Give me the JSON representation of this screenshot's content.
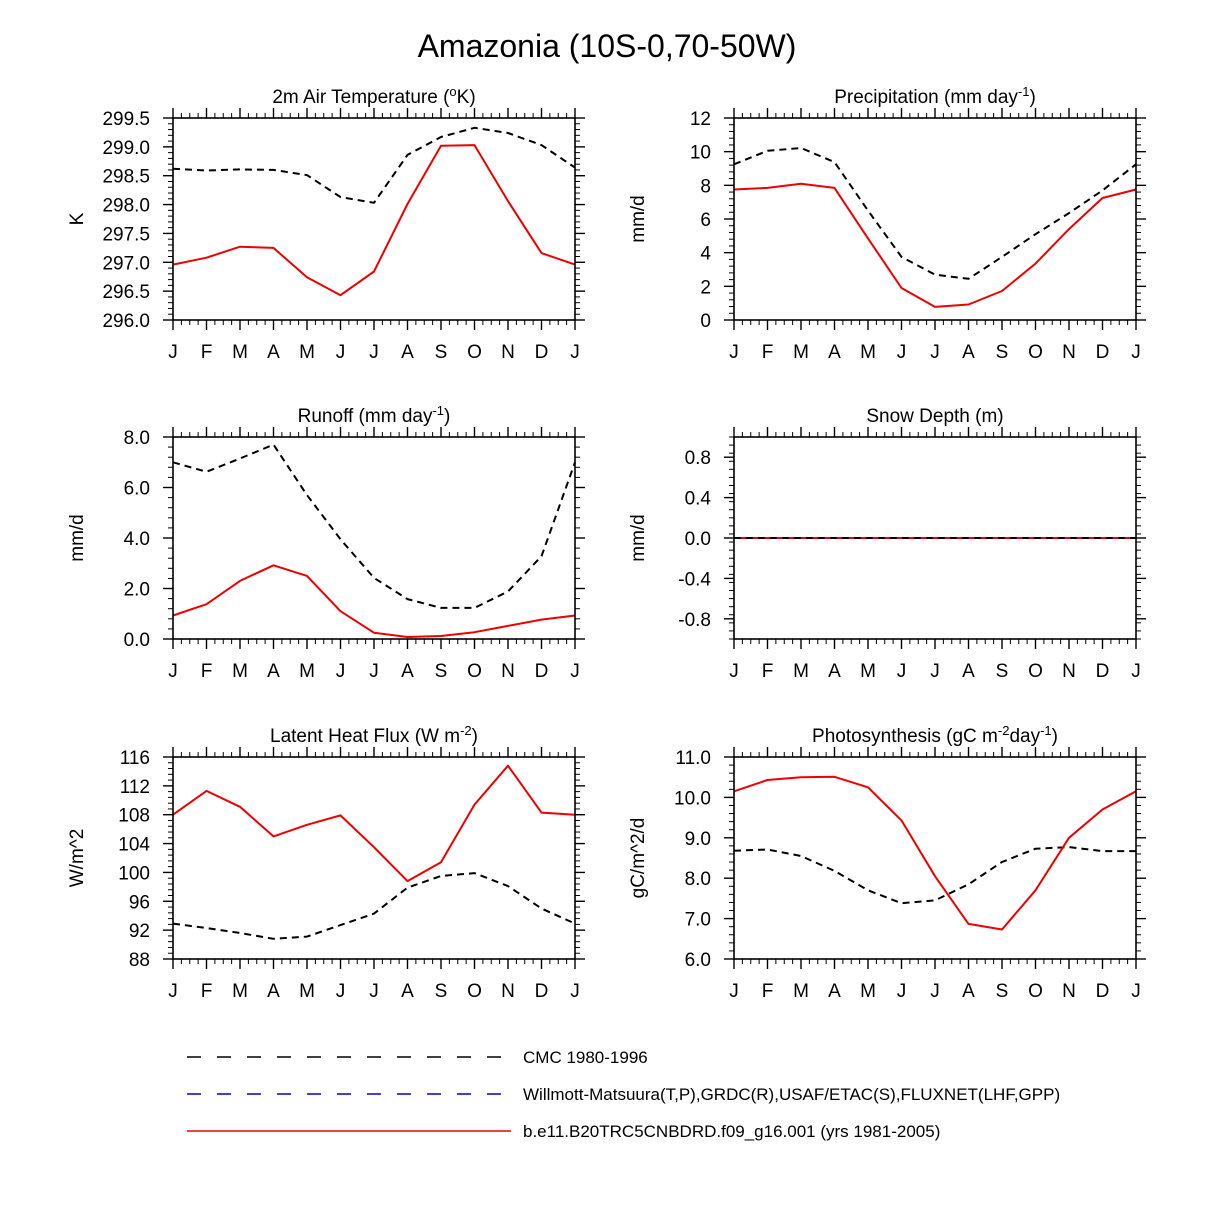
{
  "figure": {
    "title": "Amazonia (10S-0,70-50W)"
  },
  "colors": {
    "obs1": "#000000",
    "obs2": "#0000cc",
    "model": "#ee0000",
    "axis": "#000000"
  },
  "legend": {
    "entries": [
      {
        "label": "CMC 1980-1996",
        "style": "dashed",
        "color": "#000000"
      },
      {
        "label": "Willmott-Matsuura(T,P),GRDC(R),USAF/ETAC(S),FLUXNET(LHF,GPP)",
        "style": "dashed",
        "color": "#0000cc"
      },
      {
        "label": "b.e11.B20TRC5CNBDRD.f09_g16.001 (yrs 1981-2005)",
        "style": "solid",
        "color": "#ee0000"
      }
    ]
  },
  "chart_data": [
    {
      "type": "line",
      "title_main": "2m Air Temperature (",
      "title_sup": "o",
      "title_end": "K)",
      "ylabel": "K",
      "categories": [
        "J",
        "F",
        "M",
        "A",
        "M",
        "J",
        "J",
        "A",
        "S",
        "O",
        "N",
        "D",
        "J"
      ],
      "ylim": [
        296.0,
        299.5
      ],
      "yticks": [
        296.0,
        296.5,
        297.0,
        297.5,
        298.0,
        298.5,
        299.0,
        299.5
      ],
      "ytick_labels": [
        "296.0",
        "296.5",
        "297.0",
        "297.5",
        "298.0",
        "298.5",
        "299.0",
        "299.5"
      ],
      "series": [
        {
          "name": "CMC 1980-1996",
          "style": "dashed",
          "color": "#000000",
          "values": [
            298.62,
            298.59,
            298.61,
            298.6,
            298.51,
            298.13,
            298.03,
            298.86,
            299.17,
            299.33,
            299.24,
            299.03,
            298.64
          ]
        },
        {
          "name": "b.e11.B20TRC5CNBDRD.f09_g16.001 (yrs 1981-2005)",
          "style": "solid",
          "color": "#ee0000",
          "values": [
            296.96,
            297.08,
            297.27,
            297.25,
            296.74,
            296.43,
            296.84,
            298.01,
            299.02,
            299.03,
            298.06,
            297.16,
            296.96
          ]
        }
      ]
    },
    {
      "type": "line",
      "title_main": "Precipitation (mm day",
      "title_sup": "-1",
      "title_end": ")",
      "ylabel": "mm/d",
      "categories": [
        "J",
        "F",
        "M",
        "A",
        "M",
        "J",
        "J",
        "A",
        "S",
        "O",
        "N",
        "D",
        "J"
      ],
      "ylim": [
        0,
        12
      ],
      "yticks": [
        0,
        2,
        4,
        6,
        8,
        10,
        12
      ],
      "ytick_labels": [
        "0",
        "2",
        "4",
        "6",
        "8",
        "10",
        "12"
      ],
      "series": [
        {
          "name": "CMC 1980-1996",
          "style": "dashed",
          "color": "#000000",
          "values": [
            9.25,
            10.05,
            10.22,
            9.38,
            6.5,
            3.75,
            2.7,
            2.45,
            3.75,
            5.1,
            6.35,
            7.7,
            9.25
          ]
        },
        {
          "name": "b.e11.B20TRC5CNBDRD.f09_g16.001 (yrs 1981-2005)",
          "style": "solid",
          "color": "#ee0000",
          "values": [
            7.75,
            7.85,
            8.1,
            7.85,
            4.85,
            1.9,
            0.78,
            0.92,
            1.72,
            3.35,
            5.4,
            7.25,
            7.75
          ]
        }
      ]
    },
    {
      "type": "line",
      "title_main": "Runoff (mm day",
      "title_sup": "-1",
      "title_end": ")",
      "ylabel": "mm/d",
      "categories": [
        "J",
        "F",
        "M",
        "A",
        "M",
        "J",
        "J",
        "A",
        "S",
        "O",
        "N",
        "D",
        "J"
      ],
      "ylim": [
        0,
        8
      ],
      "yticks": [
        0,
        2,
        4,
        6,
        8
      ],
      "ytick_labels": [
        "0.0",
        "2.0",
        "4.0",
        "6.0",
        "8.0"
      ],
      "series": [
        {
          "name": "CMC 1980-1996",
          "style": "dashed",
          "color": "#000000",
          "values": [
            7.0,
            6.62,
            7.15,
            7.7,
            5.7,
            3.95,
            2.42,
            1.58,
            1.23,
            1.23,
            1.88,
            3.28,
            7.0
          ]
        },
        {
          "name": "b.e11.B20TRC5CNBDRD.f09_g16.001 (yrs 1981-2005)",
          "style": "solid",
          "color": "#ee0000",
          "values": [
            0.93,
            1.38,
            2.3,
            2.92,
            2.5,
            1.1,
            0.25,
            0.08,
            0.12,
            0.27,
            0.52,
            0.77,
            0.93
          ]
        }
      ]
    },
    {
      "type": "line",
      "title_main": "Snow Depth (m)",
      "title_sup": "",
      "title_end": "",
      "ylabel": "mm/d",
      "categories": [
        "J",
        "F",
        "M",
        "A",
        "M",
        "J",
        "J",
        "A",
        "S",
        "O",
        "N",
        "D",
        "J"
      ],
      "ylim": [
        -1,
        1
      ],
      "yticks": [
        -0.8,
        -0.4,
        0.0,
        0.4,
        0.8
      ],
      "ytick_labels": [
        "-0.8",
        "-0.4",
        "0.0",
        "0.4",
        "0.8"
      ],
      "zero_line": true,
      "series": [
        {
          "name": "b.e11.B20TRC5CNBDRD.f09_g16.001 (yrs 1981-2005)",
          "style": "solid",
          "color": "#ee0000",
          "values": [
            0,
            0,
            0,
            0,
            0,
            0,
            0,
            0,
            0,
            0,
            0,
            0,
            0
          ]
        },
        {
          "name": "CMC 1980-1996",
          "style": "dashed",
          "color": "#000000",
          "values": [
            0,
            0,
            0,
            0,
            0,
            0,
            0,
            0,
            0,
            0,
            0,
            0,
            0
          ]
        }
      ]
    },
    {
      "type": "line",
      "title_main": "Latent Heat Flux (W m",
      "title_sup": "-2",
      "title_end": ")",
      "ylabel": "W/m^2",
      "categories": [
        "J",
        "F",
        "M",
        "A",
        "M",
        "J",
        "J",
        "A",
        "S",
        "O",
        "N",
        "D",
        "J"
      ],
      "ylim": [
        88,
        116
      ],
      "yticks": [
        88,
        92,
        96,
        100,
        104,
        108,
        112,
        116
      ],
      "ytick_labels": [
        "88",
        "92",
        "96",
        "100",
        "104",
        "108",
        "112",
        "116"
      ],
      "series": [
        {
          "name": "Willmott-Matsuura(T,P),GRDC(R),USAF/ETAC(S),FLUXNET(LHF,GPP)",
          "style": "dashed",
          "color": "#000000",
          "values": [
            92.9,
            92.3,
            91.6,
            90.8,
            91.1,
            92.7,
            94.3,
            97.9,
            99.5,
            99.9,
            98.1,
            95.0,
            92.9
          ]
        },
        {
          "name": "b.e11.B20TRC5CNBDRD.f09_g16.001 (yrs 1981-2005)",
          "style": "solid",
          "color": "#ee0000",
          "values": [
            108.0,
            111.3,
            109.1,
            105.0,
            106.6,
            107.9,
            103.5,
            98.8,
            101.4,
            109.4,
            114.8,
            108.3,
            108.0
          ]
        }
      ]
    },
    {
      "type": "line",
      "title_main": "Photosynthesis (gC m",
      "title_sup": "-2",
      "title_end": "day",
      "title_sup2": "-1",
      "title_end2": ")",
      "ylabel": "gC/m^2/d",
      "categories": [
        "J",
        "F",
        "M",
        "A",
        "M",
        "J",
        "J",
        "A",
        "S",
        "O",
        "N",
        "D",
        "J"
      ],
      "ylim": [
        6,
        11
      ],
      "yticks": [
        6,
        7,
        8,
        9,
        10,
        11
      ],
      "ytick_labels": [
        "6.0",
        "7.0",
        "8.0",
        "9.0",
        "10.0",
        "11.0"
      ],
      "series": [
        {
          "name": "Willmott-Matsuura(T,P),GRDC(R),USAF/ETAC(S),FLUXNET(LHF,GPP)",
          "style": "dashed",
          "color": "#000000",
          "values": [
            8.68,
            8.71,
            8.55,
            8.18,
            7.7,
            7.38,
            7.45,
            7.85,
            8.4,
            8.73,
            8.77,
            8.67,
            8.67
          ]
        },
        {
          "name": "b.e11.B20TRC5CNBDRD.f09_g16.001 (yrs 1981-2005)",
          "style": "solid",
          "color": "#ee0000",
          "values": [
            10.15,
            10.43,
            10.5,
            10.51,
            10.25,
            9.43,
            8.05,
            6.87,
            6.73,
            7.7,
            9.0,
            9.7,
            10.15
          ]
        }
      ]
    }
  ]
}
